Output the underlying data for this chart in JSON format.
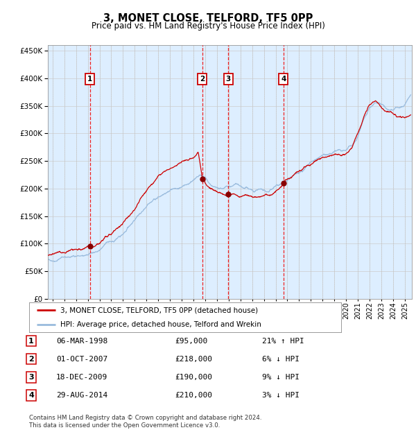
{
  "title": "3, MONET CLOSE, TELFORD, TF5 0PP",
  "subtitle": "Price paid vs. HM Land Registry's House Price Index (HPI)",
  "ylim": [
    0,
    460000
  ],
  "yticks": [
    0,
    50000,
    100000,
    150000,
    200000,
    250000,
    300000,
    350000,
    400000,
    450000
  ],
  "xlim_start": 1994.6,
  "xlim_end": 2025.6,
  "background_color": "#ffffff",
  "plot_bg_color": "#ddeeff",
  "grid_color": "#cccccc",
  "red_line_color": "#cc0000",
  "blue_line_color": "#99bbdd",
  "sale_marker_color": "#880000",
  "annotation_box_edgecolor": "#cc0000",
  "sales": [
    {
      "num": 1,
      "year": 1998.18,
      "price": 95000
    },
    {
      "num": 2,
      "year": 2007.75,
      "price": 218000
    },
    {
      "num": 3,
      "year": 2009.96,
      "price": 190000
    },
    {
      "num": 4,
      "year": 2014.66,
      "price": 210000
    }
  ],
  "legend_entries": [
    "3, MONET CLOSE, TELFORD, TF5 0PP (detached house)",
    "HPI: Average price, detached house, Telford and Wrekin"
  ],
  "footer_lines": [
    "Contains HM Land Registry data © Crown copyright and database right 2024.",
    "This data is licensed under the Open Government Licence v3.0."
  ],
  "table_rows": [
    [
      "1",
      "06-MAR-1998",
      "£95,000",
      "21% ↑ HPI"
    ],
    [
      "2",
      "01-OCT-2007",
      "£218,000",
      "6% ↓ HPI"
    ],
    [
      "3",
      "18-DEC-2009",
      "£190,000",
      "9% ↓ HPI"
    ],
    [
      "4",
      "29-AUG-2014",
      "£210,000",
      "3% ↓ HPI"
    ]
  ],
  "hpi_anchors": [
    [
      1994.6,
      72000
    ],
    [
      1995.0,
      73000
    ],
    [
      1996.0,
      75000
    ],
    [
      1997.0,
      78000
    ],
    [
      1998.0,
      82000
    ],
    [
      1999.0,
      90000
    ],
    [
      2000.0,
      105000
    ],
    [
      2001.0,
      120000
    ],
    [
      2002.0,
      142000
    ],
    [
      2003.0,
      168000
    ],
    [
      2004.0,
      185000
    ],
    [
      2005.0,
      197000
    ],
    [
      2006.0,
      205000
    ],
    [
      2007.0,
      218000
    ],
    [
      2007.5,
      228000
    ],
    [
      2008.0,
      222000
    ],
    [
      2008.5,
      210000
    ],
    [
      2009.0,
      202000
    ],
    [
      2009.5,
      200000
    ],
    [
      2010.0,
      205000
    ],
    [
      2010.5,
      207000
    ],
    [
      2011.0,
      203000
    ],
    [
      2011.5,
      200000
    ],
    [
      2012.0,
      197000
    ],
    [
      2012.5,
      196000
    ],
    [
      2013.0,
      196000
    ],
    [
      2013.5,
      198000
    ],
    [
      2014.0,
      203000
    ],
    [
      2014.5,
      208000
    ],
    [
      2015.0,
      218000
    ],
    [
      2015.5,
      225000
    ],
    [
      2016.0,
      232000
    ],
    [
      2016.5,
      238000
    ],
    [
      2017.0,
      245000
    ],
    [
      2017.5,
      252000
    ],
    [
      2018.0,
      258000
    ],
    [
      2018.5,
      262000
    ],
    [
      2019.0,
      265000
    ],
    [
      2019.5,
      268000
    ],
    [
      2020.0,
      270000
    ],
    [
      2020.5,
      278000
    ],
    [
      2021.0,
      298000
    ],
    [
      2021.5,
      325000
    ],
    [
      2022.0,
      348000
    ],
    [
      2022.5,
      358000
    ],
    [
      2023.0,
      352000
    ],
    [
      2023.5,
      345000
    ],
    [
      2024.0,
      342000
    ],
    [
      2024.5,
      348000
    ],
    [
      2025.0,
      355000
    ],
    [
      2025.5,
      368000
    ]
  ],
  "prop_anchors": [
    [
      1994.6,
      80000
    ],
    [
      1995.0,
      82000
    ],
    [
      1996.0,
      84000
    ],
    [
      1997.0,
      88000
    ],
    [
      1997.8,
      91000
    ],
    [
      1998.18,
      95000
    ],
    [
      1998.5,
      97000
    ],
    [
      1999.0,
      102000
    ],
    [
      2000.0,
      118000
    ],
    [
      2001.0,
      138000
    ],
    [
      2002.0,
      162000
    ],
    [
      2003.0,
      195000
    ],
    [
      2004.0,
      222000
    ],
    [
      2005.0,
      238000
    ],
    [
      2006.0,
      248000
    ],
    [
      2007.0,
      258000
    ],
    [
      2007.4,
      270000
    ],
    [
      2007.75,
      218000
    ],
    [
      2008.0,
      210000
    ],
    [
      2008.5,
      200000
    ],
    [
      2009.0,
      193000
    ],
    [
      2009.5,
      190000
    ],
    [
      2009.96,
      190000
    ],
    [
      2010.0,
      189000
    ],
    [
      2010.5,
      188000
    ],
    [
      2011.0,
      187000
    ],
    [
      2011.5,
      185000
    ],
    [
      2012.0,
      184000
    ],
    [
      2012.5,
      184000
    ],
    [
      2013.0,
      185000
    ],
    [
      2013.5,
      188000
    ],
    [
      2014.0,
      195000
    ],
    [
      2014.5,
      205000
    ],
    [
      2014.66,
      210000
    ],
    [
      2015.0,
      217000
    ],
    [
      2015.5,
      225000
    ],
    [
      2016.0,
      232000
    ],
    [
      2016.5,
      238000
    ],
    [
      2017.0,
      245000
    ],
    [
      2017.5,
      250000
    ],
    [
      2018.0,
      255000
    ],
    [
      2018.5,
      258000
    ],
    [
      2019.0,
      260000
    ],
    [
      2019.5,
      262000
    ],
    [
      2020.0,
      265000
    ],
    [
      2020.5,
      275000
    ],
    [
      2021.0,
      300000
    ],
    [
      2021.5,
      328000
    ],
    [
      2022.0,
      352000
    ],
    [
      2022.5,
      360000
    ],
    [
      2023.0,
      348000
    ],
    [
      2023.5,
      340000
    ],
    [
      2024.0,
      335000
    ],
    [
      2024.5,
      330000
    ],
    [
      2025.0,
      328000
    ],
    [
      2025.5,
      335000
    ]
  ]
}
